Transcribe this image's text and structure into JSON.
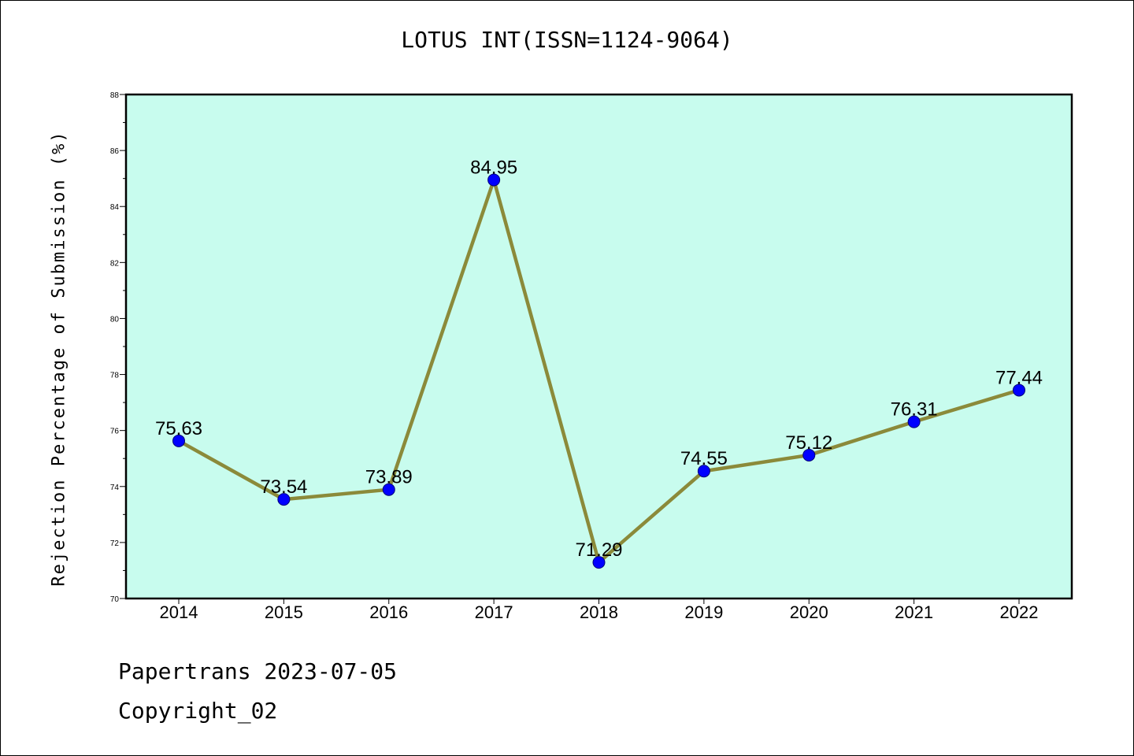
{
  "chart_data": {
    "type": "line",
    "title": "LOTUS INT(ISSN=1124-9064)",
    "xlabel": "",
    "ylabel": "Rejection Percentage of Submission (%)",
    "categories": [
      "2014",
      "2015",
      "2016",
      "2017",
      "2018",
      "2019",
      "2020",
      "2021",
      "2022"
    ],
    "series": [
      {
        "values": [
          75.63,
          73.54,
          73.89,
          84.95,
          71.29,
          74.55,
          75.12,
          76.31,
          77.44
        ],
        "data_labels": [
          "75.63",
          "73.54",
          "73.89",
          "84.95",
          "71.29",
          "74.55",
          "75.12",
          "76.31",
          "77.44"
        ]
      }
    ],
    "ylim": [
      70,
      88
    ],
    "yticks": [
      "70",
      "72",
      "74",
      "76",
      "78",
      "80",
      "82",
      "84",
      "86",
      "88"
    ],
    "grid": false,
    "legend": "none",
    "colors": {
      "plot_background": "#c8fcee",
      "line": "#8b8a3a",
      "marker": "#0000ff"
    }
  },
  "footer": {
    "line1": "Papertrans 2023-07-05",
    "line2": "Copyright_02"
  }
}
